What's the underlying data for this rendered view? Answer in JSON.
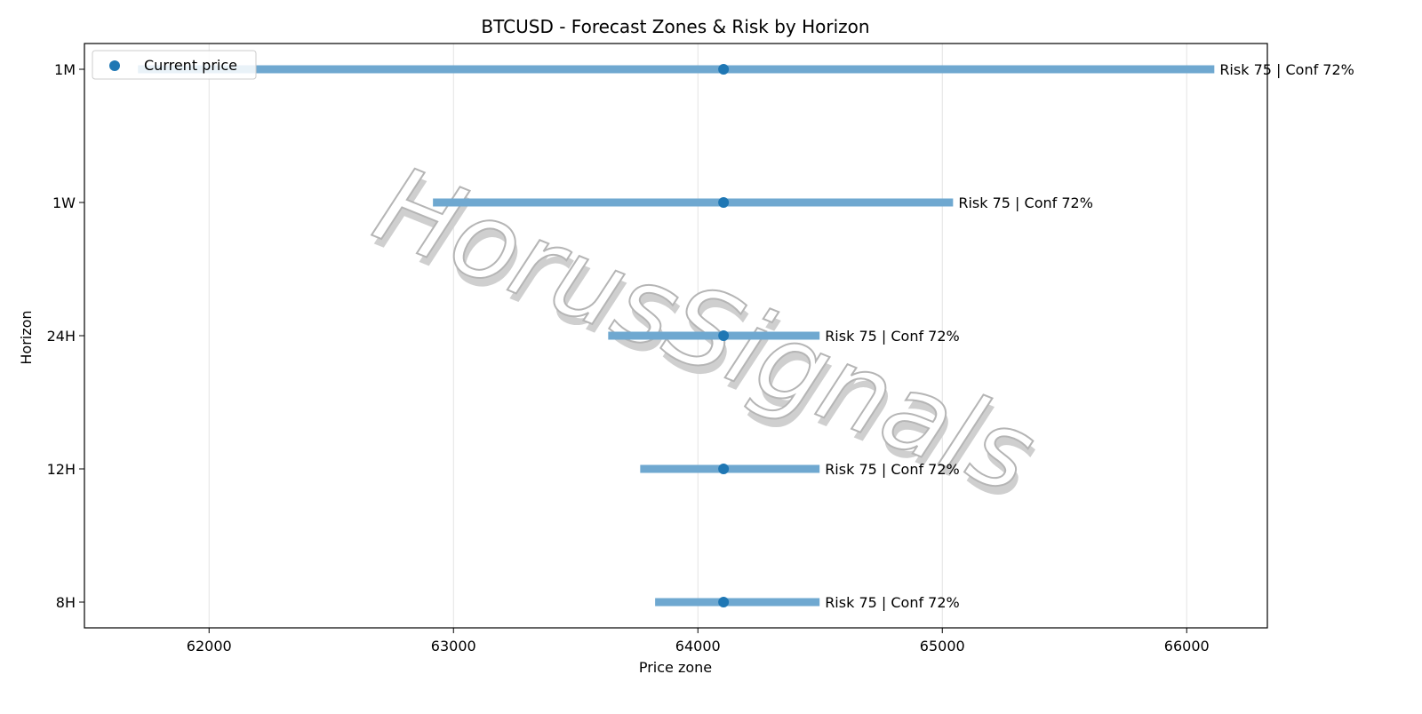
{
  "chart_data": {
    "type": "range",
    "title": "BTCUSD - Forecast Zones & Risk by Horizon",
    "xlabel": "Price zone",
    "ylabel": "Horizon",
    "categories": [
      "1M",
      "1W",
      "24H",
      "12H",
      "8H"
    ],
    "low": [
      61709,
      62916,
      63633,
      63764,
      63825
    ],
    "high": [
      66113,
      65044,
      64498,
      64498,
      64498
    ],
    "bar_color": "#6fa8d0",
    "series": [
      {
        "name": "Current price",
        "color": "#1f77b4",
        "values": [
          64105,
          64105,
          64105,
          64105,
          64105
        ]
      }
    ],
    "annotations": [
      "Risk 75 | Conf 72%",
      "Risk 75 | Conf 72%",
      "Risk 75 | Conf 72%",
      "Risk 75 | Conf 72%",
      "Risk 75 | Conf 72%"
    ],
    "xlim": [
      61490,
      66330
    ],
    "xticks": [
      62000,
      63000,
      64000,
      65000,
      66000
    ],
    "grid": true,
    "legend": "upper left",
    "watermark": "HorusSignals"
  }
}
